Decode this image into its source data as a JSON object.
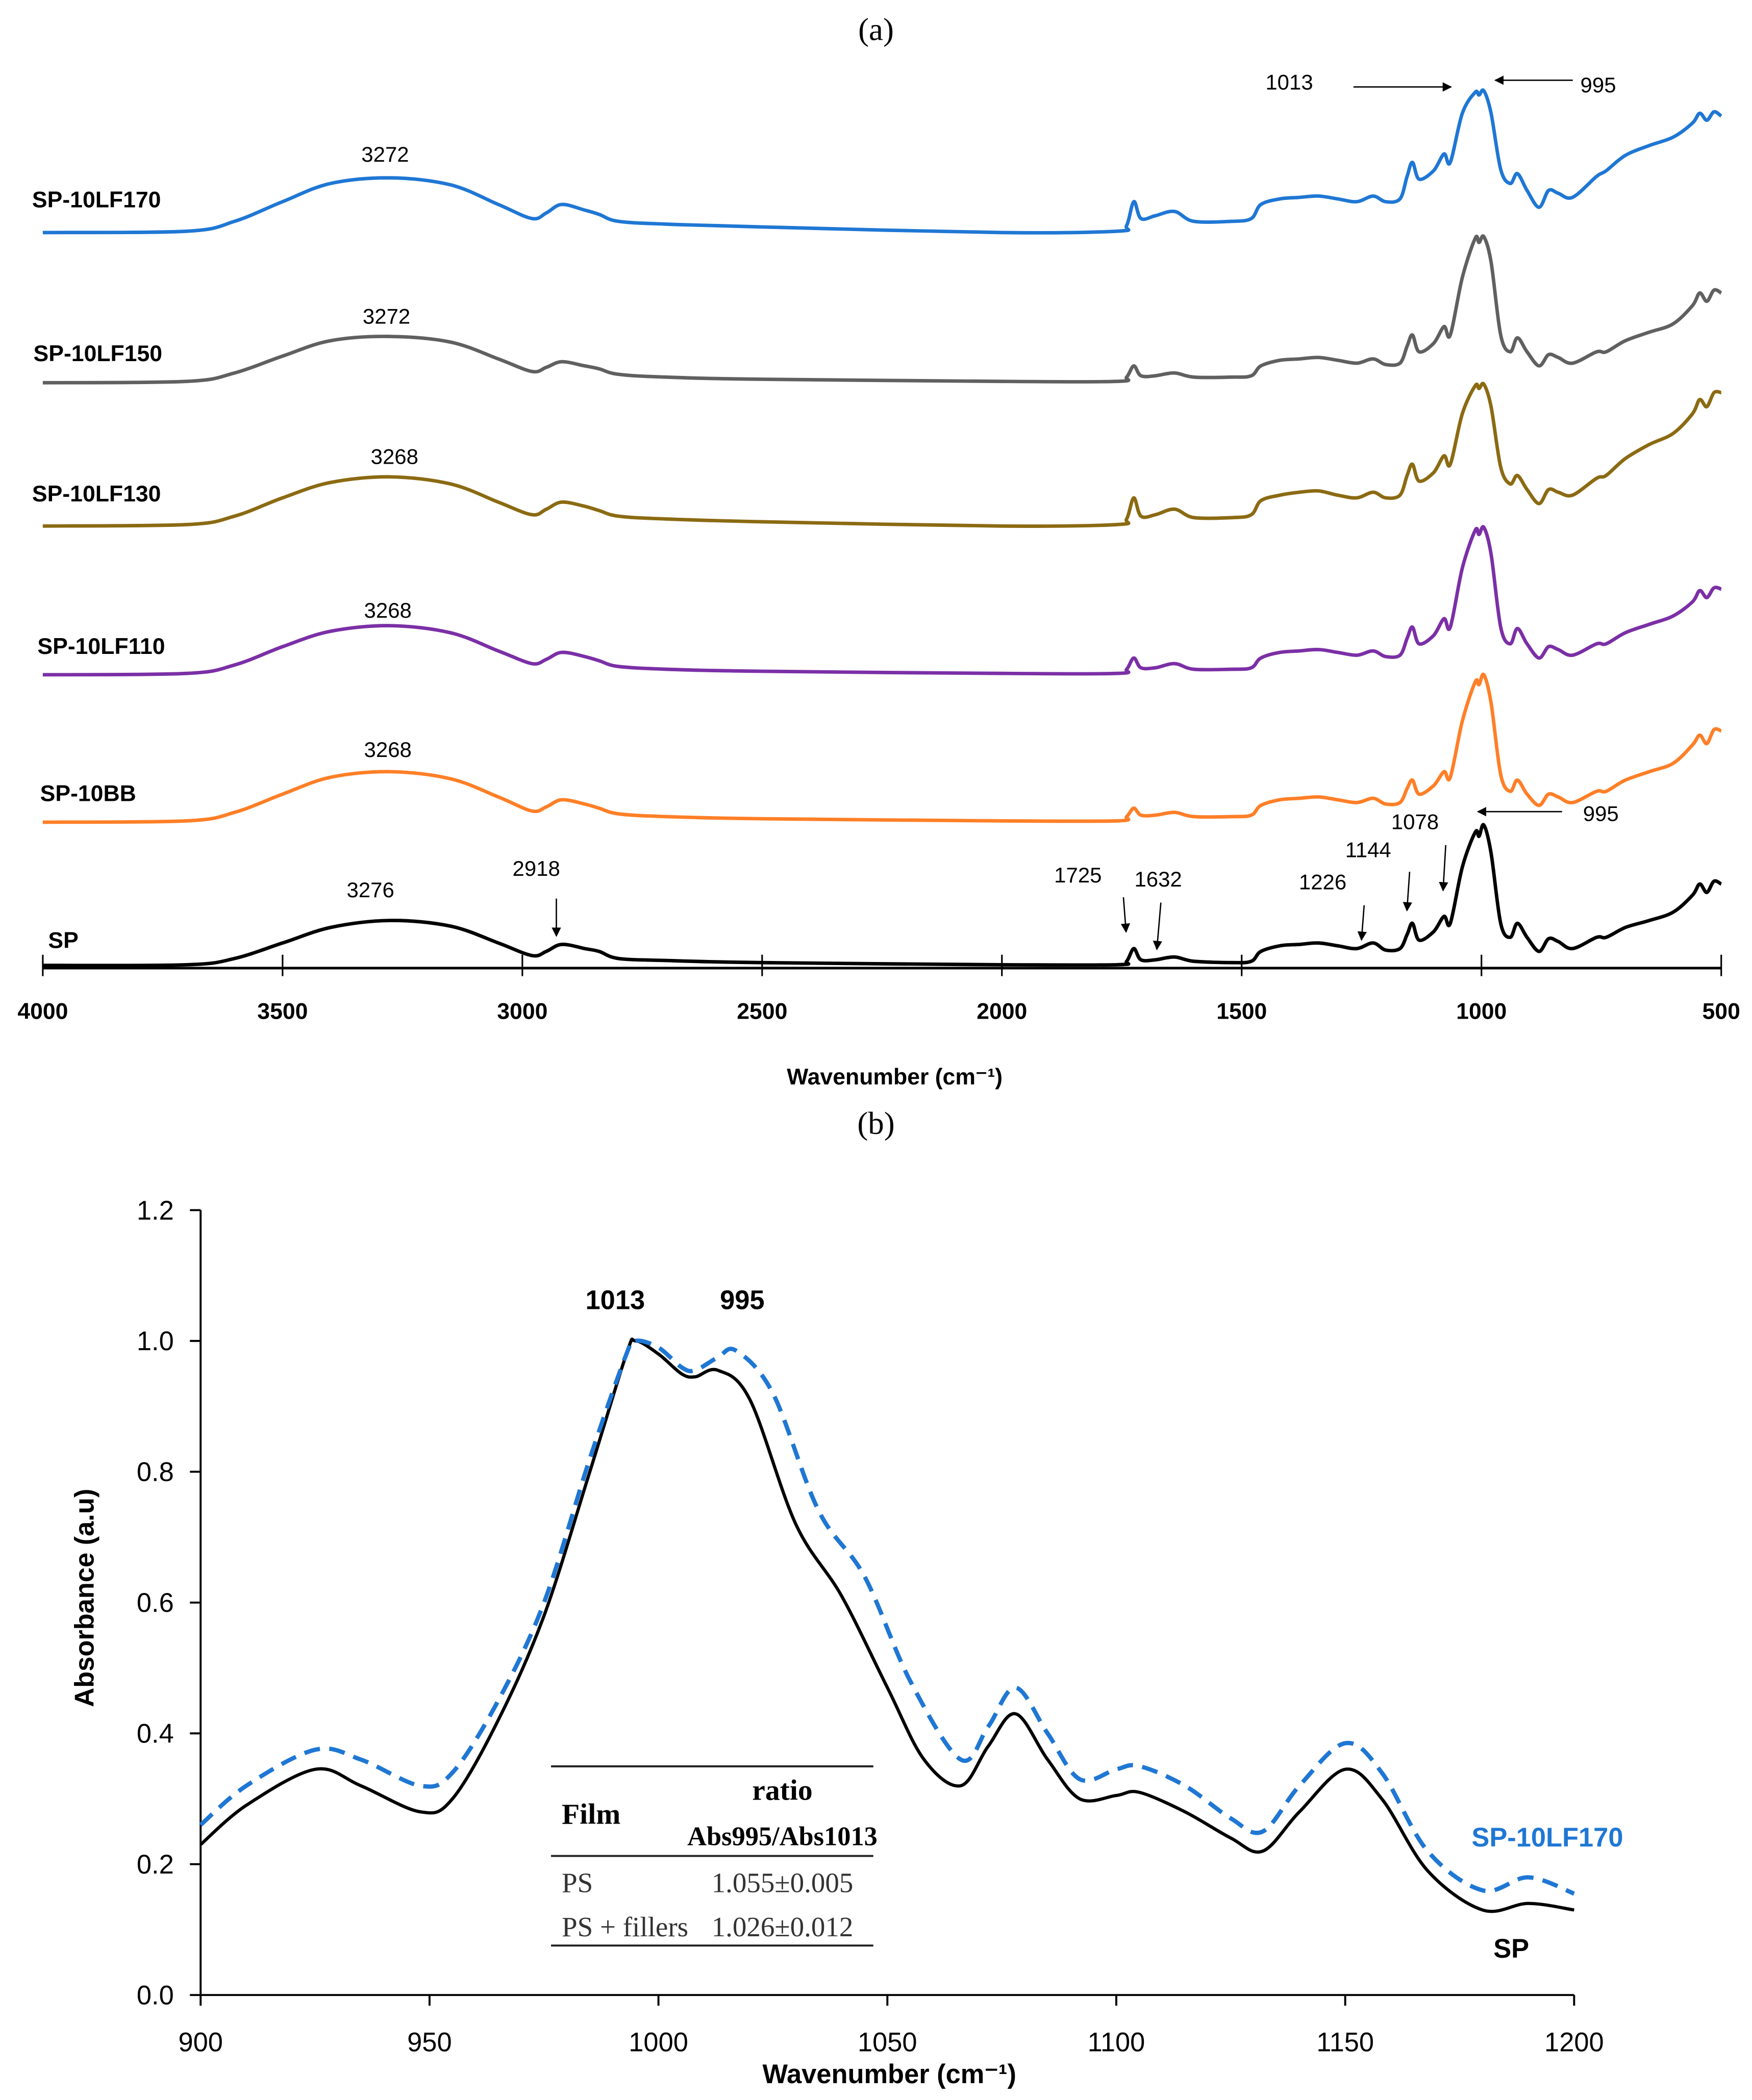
{
  "chart_data": [
    {
      "type": "line",
      "panel_label": "(a)",
      "xlabel": "Wavenumber (cm⁻¹)",
      "ylabel": "",
      "xlim": [
        4000,
        500
      ],
      "x_reversed": true,
      "xticks": [
        "4000",
        "3500",
        "3000",
        "2500",
        "2000",
        "1500",
        "1000",
        "500"
      ],
      "stacked_offsets": [
        0,
        1.02,
        2.07,
        3.13,
        4.15,
        5.22
      ],
      "wavenumbers": [
        4000,
        3700,
        3600,
        3500,
        3400,
        3276,
        3150,
        3050,
        2980,
        2950,
        2918,
        2870,
        2840,
        2800,
        2700,
        2500,
        2000,
        1760,
        1740,
        1725,
        1710,
        1680,
        1640,
        1600,
        1520,
        1480,
        1460,
        1420,
        1380,
        1340,
        1300,
        1260,
        1226,
        1200,
        1170,
        1155,
        1144,
        1130,
        1100,
        1078,
        1065,
        1040,
        1013,
        1005,
        995,
        980,
        960,
        940,
        925,
        905,
        880,
        860,
        840,
        810,
        760,
        740,
        700,
        650,
        600,
        560,
        545,
        530,
        515,
        500
      ],
      "series": [
        {
          "name": "SP",
          "color": "#000000",
          "peak_label": "3276",
          "values": [
            0,
            0.005,
            0.05,
            0.16,
            0.27,
            0.32,
            0.28,
            0.16,
            0.07,
            0.1,
            0.15,
            0.12,
            0.1,
            0.05,
            0.035,
            0.02,
            0.005,
            0.005,
            0.03,
            0.12,
            0.04,
            0.04,
            0.06,
            0.03,
            0.02,
            0.03,
            0.1,
            0.14,
            0.15,
            0.16,
            0.14,
            0.12,
            0.16,
            0.11,
            0.12,
            0.22,
            0.3,
            0.18,
            0.24,
            0.35,
            0.3,
            0.7,
            0.95,
            0.92,
            1.0,
            0.8,
            0.3,
            0.2,
            0.3,
            0.2,
            0.1,
            0.19,
            0.17,
            0.12,
            0.2,
            0.2,
            0.27,
            0.32,
            0.38,
            0.5,
            0.58,
            0.52,
            0.6,
            0.58
          ]
        },
        {
          "name": "SP-10BB",
          "color": "#ff7f27",
          "peak_label": "3268",
          "values": [
            0,
            0.01,
            0.07,
            0.2,
            0.32,
            0.36,
            0.31,
            0.18,
            0.08,
            0.11,
            0.16,
            0.13,
            0.1,
            0.06,
            0.04,
            0.025,
            0.01,
            0.01,
            0.04,
            0.1,
            0.05,
            0.05,
            0.07,
            0.04,
            0.04,
            0.05,
            0.12,
            0.16,
            0.17,
            0.18,
            0.16,
            0.14,
            0.17,
            0.13,
            0.14,
            0.24,
            0.3,
            0.2,
            0.26,
            0.36,
            0.32,
            0.72,
            1.0,
            0.98,
            1.05,
            0.85,
            0.34,
            0.22,
            0.3,
            0.2,
            0.12,
            0.2,
            0.18,
            0.14,
            0.22,
            0.22,
            0.3,
            0.36,
            0.42,
            0.55,
            0.62,
            0.56,
            0.66,
            0.65
          ]
        },
        {
          "name": "SP-10LF110",
          "color": "#7b2fa6",
          "peak_label": "3268",
          "values": [
            0,
            0.01,
            0.07,
            0.2,
            0.31,
            0.35,
            0.3,
            0.17,
            0.08,
            0.11,
            0.16,
            0.13,
            0.1,
            0.06,
            0.04,
            0.025,
            0.01,
            0.01,
            0.04,
            0.12,
            0.05,
            0.05,
            0.08,
            0.04,
            0.04,
            0.05,
            0.12,
            0.16,
            0.17,
            0.18,
            0.16,
            0.14,
            0.17,
            0.13,
            0.14,
            0.26,
            0.34,
            0.22,
            0.28,
            0.4,
            0.34,
            0.76,
            1.03,
            1.0,
            1.05,
            0.86,
            0.34,
            0.22,
            0.33,
            0.22,
            0.12,
            0.2,
            0.18,
            0.14,
            0.22,
            0.22,
            0.3,
            0.36,
            0.42,
            0.52,
            0.6,
            0.55,
            0.62,
            0.61
          ]
        },
        {
          "name": "SP-10LF130",
          "color": "#8b6a12",
          "peak_label": "3268",
          "values": [
            0,
            0.01,
            0.07,
            0.2,
            0.31,
            0.35,
            0.3,
            0.17,
            0.08,
            0.12,
            0.17,
            0.14,
            0.11,
            0.07,
            0.05,
            0.03,
            0.0,
            0.01,
            0.05,
            0.2,
            0.07,
            0.08,
            0.12,
            0.06,
            0.06,
            0.08,
            0.18,
            0.22,
            0.24,
            0.25,
            0.22,
            0.2,
            0.24,
            0.2,
            0.22,
            0.36,
            0.44,
            0.32,
            0.38,
            0.5,
            0.44,
            0.8,
            1.0,
            0.98,
            1.01,
            0.85,
            0.42,
            0.3,
            0.36,
            0.26,
            0.16,
            0.26,
            0.24,
            0.22,
            0.34,
            0.36,
            0.48,
            0.58,
            0.66,
            0.8,
            0.9,
            0.85,
            0.95,
            0.95
          ]
        },
        {
          "name": "SP-10LF150",
          "color": "#606060",
          "peak_label": "3272",
          "values": [
            0,
            0.01,
            0.07,
            0.19,
            0.3,
            0.33,
            0.29,
            0.17,
            0.08,
            0.11,
            0.15,
            0.12,
            0.1,
            0.06,
            0.04,
            0.025,
            0.01,
            0.01,
            0.04,
            0.12,
            0.05,
            0.05,
            0.07,
            0.04,
            0.04,
            0.05,
            0.12,
            0.16,
            0.17,
            0.18,
            0.16,
            0.14,
            0.17,
            0.13,
            0.14,
            0.26,
            0.34,
            0.22,
            0.28,
            0.4,
            0.34,
            0.75,
            1.03,
            1.0,
            1.04,
            0.86,
            0.34,
            0.22,
            0.32,
            0.22,
            0.12,
            0.2,
            0.18,
            0.14,
            0.22,
            0.22,
            0.3,
            0.36,
            0.42,
            0.55,
            0.64,
            0.58,
            0.66,
            0.64
          ]
        },
        {
          "name": "SP-10LF170",
          "color": "#1f77d4",
          "peak_label": "3272",
          "values": [
            0,
            0.01,
            0.08,
            0.22,
            0.35,
            0.39,
            0.34,
            0.2,
            0.1,
            0.14,
            0.2,
            0.16,
            0.13,
            0.08,
            0.06,
            0.04,
            0.0,
            0.01,
            0.05,
            0.22,
            0.1,
            0.12,
            0.15,
            0.08,
            0.08,
            0.1,
            0.2,
            0.24,
            0.25,
            0.26,
            0.24,
            0.22,
            0.26,
            0.22,
            0.24,
            0.4,
            0.5,
            0.38,
            0.44,
            0.56,
            0.5,
            0.85,
            1.0,
            0.98,
            1.01,
            0.85,
            0.45,
            0.35,
            0.42,
            0.3,
            0.18,
            0.3,
            0.28,
            0.25,
            0.4,
            0.44,
            0.55,
            0.62,
            0.68,
            0.78,
            0.85,
            0.8,
            0.86,
            0.83
          ]
        }
      ],
      "annotations": {
        "top_1013": "1013",
        "top_995": "995",
        "sp_2918": "2918",
        "sp_1725": "1725",
        "sp_1632": "1632",
        "sp_1226": "1226",
        "sp_1144": "1144",
        "sp_1078": "1078",
        "sp_995": "995"
      }
    },
    {
      "type": "line",
      "panel_label": "(b)",
      "xlabel": "Wavenumber (cm⁻¹)",
      "ylabel": "Absorbance (a.u)",
      "xlim": [
        900,
        1200
      ],
      "ylim": [
        0,
        1.2
      ],
      "xticks": [
        "900",
        "950",
        "1000",
        "1050",
        "1100",
        "1150",
        "1200"
      ],
      "yticks": [
        "0.0",
        "0.2",
        "0.4",
        "0.6",
        "0.8",
        "1.0",
        "1.2"
      ],
      "peak_labels": [
        "1013",
        "995"
      ],
      "series": [
        {
          "name": "SP",
          "color": "#000000",
          "style": "solid",
          "x": [
            900,
            910,
            925,
            935,
            948,
            955,
            965,
            975,
            985,
            993,
            995,
            1000,
            1005,
            1008,
            1013,
            1020,
            1030,
            1040,
            1050,
            1058,
            1066,
            1072,
            1078,
            1085,
            1092,
            1100,
            1105,
            1115,
            1125,
            1132,
            1140,
            1150,
            1158,
            1168,
            1180,
            1190,
            1200
          ],
          "y": [
            0.23,
            0.29,
            0.345,
            0.32,
            0.28,
            0.3,
            0.42,
            0.58,
            0.8,
            0.98,
            1.0,
            0.98,
            0.95,
            0.945,
            0.955,
            0.91,
            0.72,
            0.61,
            0.47,
            0.36,
            0.32,
            0.38,
            0.43,
            0.36,
            0.3,
            0.305,
            0.31,
            0.28,
            0.24,
            0.22,
            0.28,
            0.345,
            0.3,
            0.19,
            0.13,
            0.14,
            0.13
          ]
        },
        {
          "name": "SP-10LF170",
          "color": "#1f77d4",
          "style": "dashed",
          "x": [
            900,
            910,
            925,
            935,
            948,
            955,
            965,
            975,
            985,
            993,
            995,
            1000,
            1005,
            1008,
            1013,
            1017,
            1025,
            1035,
            1045,
            1055,
            1066,
            1072,
            1078,
            1085,
            1092,
            1100,
            1105,
            1115,
            1125,
            1132,
            1140,
            1150,
            1158,
            1168,
            1180,
            1190,
            1200
          ],
          "y": [
            0.26,
            0.32,
            0.375,
            0.36,
            0.32,
            0.34,
            0.45,
            0.6,
            0.82,
            0.98,
            1.0,
            0.99,
            0.96,
            0.955,
            0.975,
            0.985,
            0.92,
            0.74,
            0.64,
            0.48,
            0.36,
            0.41,
            0.47,
            0.4,
            0.33,
            0.345,
            0.35,
            0.32,
            0.27,
            0.25,
            0.32,
            0.385,
            0.34,
            0.22,
            0.16,
            0.18,
            0.155
          ]
        }
      ],
      "table": {
        "headers": [
          "Film",
          "ratio",
          "Abs995/Abs1013"
        ],
        "rows": [
          {
            "film": "PS",
            "ratio": "1.055±0.005"
          },
          {
            "film": "PS + fillers",
            "ratio": "1.026±0.012"
          }
        ]
      }
    }
  ]
}
